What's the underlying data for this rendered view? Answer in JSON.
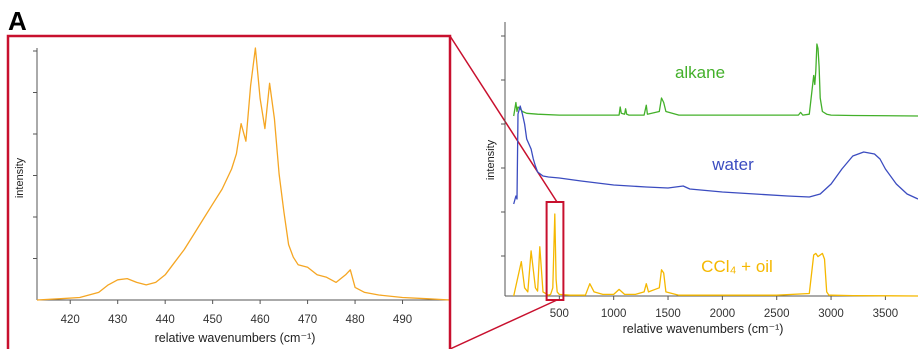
{
  "panel_label": "A",
  "chart_data": [
    {
      "type": "line",
      "xlabel": "relative wavenumbers (cm⁻¹)",
      "ylabel": "intensity",
      "xlim": [
        413,
        500
      ],
      "ylim": [
        0,
        1
      ],
      "x_ticks": [
        420,
        430,
        440,
        450,
        460,
        470,
        480,
        490
      ],
      "grid": false,
      "series": [
        {
          "color": "#f5a623",
          "x": [
            413,
            418,
            422,
            426,
            428,
            430,
            432,
            434,
            436,
            438,
            440,
            442,
            444,
            446,
            448,
            450,
            452,
            454,
            455,
            456,
            457,
            458,
            459,
            460,
            461,
            462,
            463,
            464,
            465,
            466,
            467,
            468,
            470,
            472,
            474,
            476,
            478,
            479,
            480,
            482,
            485,
            490,
            495,
            500
          ],
          "y": [
            0.0,
            0.005,
            0.01,
            0.03,
            0.06,
            0.08,
            0.085,
            0.07,
            0.06,
            0.07,
            0.1,
            0.15,
            0.2,
            0.26,
            0.32,
            0.38,
            0.44,
            0.52,
            0.58,
            0.7,
            0.63,
            0.85,
            1.0,
            0.8,
            0.68,
            0.86,
            0.72,
            0.5,
            0.35,
            0.22,
            0.17,
            0.14,
            0.13,
            0.1,
            0.09,
            0.07,
            0.1,
            0.12,
            0.05,
            0.03,
            0.02,
            0.01,
            0.005,
            0.0
          ]
        }
      ]
    },
    {
      "type": "line",
      "xlabel": "relative wavenumbers (cm⁻¹)",
      "ylabel": "intensity",
      "xlim": [
        0,
        3800
      ],
      "x_ticks": [
        500,
        1000,
        1500,
        2000,
        2500,
        3000,
        3500
      ],
      "ylim": [
        0,
        1
      ],
      "grid": false,
      "highlight_range": [
        410,
        500
      ],
      "series": [
        {
          "name": "alkane",
          "color": "#43b02a",
          "x": [
            80,
            100,
            110,
            120,
            140,
            160,
            200,
            300,
            500,
            800,
            1050,
            1060,
            1070,
            1100,
            1110,
            1120,
            1140,
            1280,
            1300,
            1310,
            1420,
            1440,
            1460,
            1480,
            1600,
            2000,
            2500,
            2700,
            2720,
            2740,
            2800,
            2840,
            2850,
            2860,
            2870,
            2880,
            2890,
            2900,
            2920,
            2960,
            3000,
            3200,
            3800
          ],
          "y": [
            0.0,
            0.15,
            0.05,
            0.1,
            0.08,
            0.05,
            0.03,
            0.02,
            0.01,
            0.01,
            0.01,
            0.1,
            0.03,
            0.02,
            0.08,
            0.02,
            0.01,
            0.01,
            0.12,
            0.02,
            0.05,
            0.2,
            0.15,
            0.05,
            0.01,
            0.01,
            0.01,
            0.01,
            0.04,
            0.01,
            0.02,
            0.45,
            0.35,
            0.5,
            0.8,
            0.75,
            0.55,
            0.2,
            0.05,
            0.02,
            0.01,
            0.005,
            0.0
          ]
        },
        {
          "name": "water",
          "color": "#3b4cc0",
          "x": [
            80,
            100,
            110,
            120,
            140,
            160,
            180,
            200,
            220,
            240,
            260,
            280,
            300,
            350,
            400,
            500,
            700,
            1000,
            1300,
            1500,
            1640,
            1700,
            2000,
            2300,
            2600,
            2800,
            2900,
            3000,
            3100,
            3200,
            3300,
            3400,
            3450,
            3500,
            3600,
            3700,
            3800
          ],
          "y": [
            0.0,
            0.08,
            0.05,
            0.9,
            0.98,
            0.9,
            0.8,
            0.65,
            0.6,
            0.55,
            0.45,
            0.38,
            0.32,
            0.28,
            0.27,
            0.26,
            0.23,
            0.19,
            0.17,
            0.16,
            0.18,
            0.15,
            0.12,
            0.1,
            0.08,
            0.07,
            0.1,
            0.2,
            0.35,
            0.48,
            0.52,
            0.5,
            0.45,
            0.35,
            0.2,
            0.1,
            0.05
          ]
        },
        {
          "name": "CCl₄ + oil",
          "color": "#f5b800",
          "x": [
            80,
            150,
            180,
            210,
            240,
            280,
            300,
            320,
            350,
            400,
            420,
            440,
            458,
            470,
            480,
            500,
            600,
            740,
            780,
            820,
            900,
            1000,
            1050,
            1100,
            1200,
            1280,
            1300,
            1320,
            1420,
            1440,
            1460,
            1480,
            1600,
            2000,
            2500,
            2800,
            2840,
            2860,
            2880,
            2900,
            2920,
            2940,
            2960,
            2980,
            3000,
            3200,
            3800
          ],
          "y": [
            0.0,
            0.42,
            0.1,
            0.05,
            0.55,
            0.1,
            0.06,
            0.6,
            0.05,
            0.01,
            0.02,
            0.1,
            1.0,
            0.2,
            0.05,
            0.02,
            0.01,
            0.01,
            0.15,
            0.05,
            0.02,
            0.02,
            0.08,
            0.02,
            0.02,
            0.05,
            0.15,
            0.05,
            0.1,
            0.32,
            0.28,
            0.05,
            0.01,
            0.01,
            0.01,
            0.03,
            0.5,
            0.52,
            0.48,
            0.5,
            0.52,
            0.45,
            0.05,
            0.01,
            0.01,
            0.005,
            0.0
          ]
        }
      ]
    }
  ]
}
